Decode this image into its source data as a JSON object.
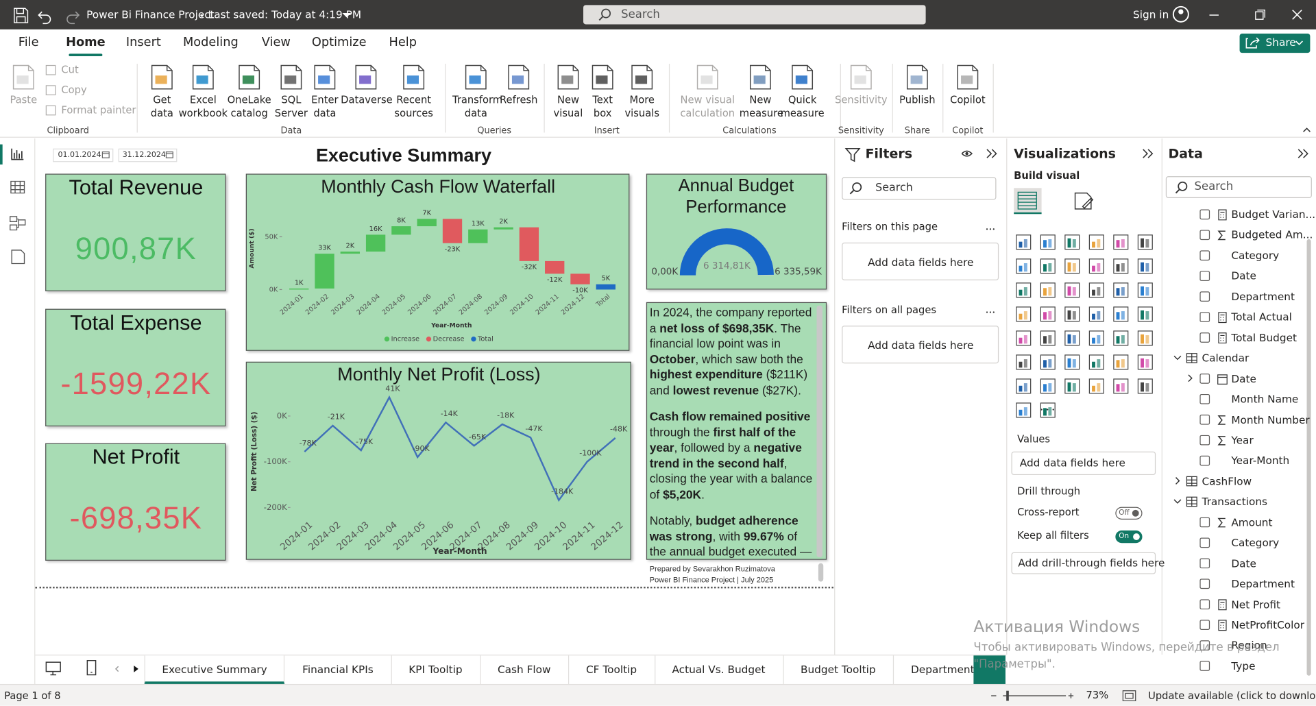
{
  "window": {
    "title": "Power Bi Finance Project",
    "saved": "Last saved: Today at 4:19 PM",
    "search": "Search",
    "sign_in": "Sign in"
  },
  "menu": {
    "tabs": [
      "File",
      "Home",
      "Insert",
      "Modeling",
      "View",
      "Optimize",
      "Help"
    ],
    "active": 1,
    "share": "Share"
  },
  "ribbon": {
    "groups": [
      {
        "label": "Clipboard",
        "buttons": [
          "Paste"
        ],
        "small": [
          "Cut",
          "Copy",
          "Format painter"
        ],
        "disabled": [
          0
        ]
      },
      {
        "label": "Data",
        "buttons": [
          "Get data",
          "Excel workbook",
          "OneLake catalog",
          "SQL Server",
          "Enter data",
          "Dataverse",
          "Recent sources"
        ],
        "disabled": []
      },
      {
        "label": "Queries",
        "buttons": [
          "Transform data",
          "Refresh"
        ],
        "disabled": []
      },
      {
        "label": "Insert",
        "buttons": [
          "New visual",
          "Text box",
          "More visuals"
        ],
        "disabled": []
      },
      {
        "label": "Calculations",
        "buttons": [
          "New visual calculation",
          "New measure",
          "Quick measure"
        ],
        "disabled": [
          0
        ]
      },
      {
        "label": "Sensitivity",
        "buttons": [
          "Sensitivity"
        ],
        "disabled": [
          0
        ]
      },
      {
        "label": "Share",
        "buttons": [
          "Publish"
        ],
        "disabled": []
      },
      {
        "label": "Copilot",
        "buttons": [
          "Copilot"
        ],
        "disabled": []
      }
    ]
  },
  "report": {
    "date_from": "01.01.2024",
    "date_to": "31.12.2024",
    "title": "Executive Summary",
    "kpis": [
      {
        "label": "Total Revenue",
        "value": "900,87K",
        "color": "#4cbb64"
      },
      {
        "label": "Total Expense",
        "value": "-1599,22K",
        "color": "#e0585e"
      },
      {
        "label": "Net Profit",
        "value": "-698,35K",
        "color": "#e0585e"
      }
    ],
    "waterfall": {
      "title": "Monthly Cash Flow Waterfall",
      "y_label": "Amount ($)",
      "x_label": "Year-Month",
      "categories": [
        "2024-01",
        "2024-02",
        "2024-03",
        "2024-04",
        "2024-05",
        "2024-06",
        "2024-07",
        "2024-08",
        "2024-09",
        "2024-10",
        "2024-11",
        "2024-12"
      ],
      "values": [
        1,
        33,
        2,
        16,
        8,
        7,
        -23,
        13,
        2,
        -32,
        -12,
        -10
      ],
      "value_labels": [
        "1K",
        "33K",
        "2K",
        "16K",
        "8K",
        "7K",
        "-23K",
        "13K",
        "2K",
        "-32K",
        "-12K",
        "-10K"
      ],
      "total_category": "Total",
      "total": 5,
      "total_label": "5K",
      "ylim": [
        0,
        70
      ],
      "yticks": [
        {
          "value": 0,
          "label": "0K"
        },
        {
          "value": 50,
          "label": "50K"
        }
      ],
      "legend": [
        {
          "name": "Increase",
          "color": "#4fc15a"
        },
        {
          "name": "Decrease",
          "color": "#e05a5e"
        },
        {
          "name": "Total",
          "color": "#1f6bc4"
        }
      ]
    },
    "line": {
      "title": "Monthly Net Profit (Loss)",
      "y_label": "Net Profit (Loss) ($)",
      "x_label": "Year-Month",
      "categories": [
        "2024-01",
        "2024-02",
        "2024-03",
        "2024-04",
        "2024-05",
        "2024-06",
        "2024-07",
        "2024-08",
        "2024-09",
        "2024-10",
        "2024-11",
        "2024-12"
      ],
      "values": [
        -78,
        -21,
        -75,
        41,
        -90,
        -14,
        -65,
        -18,
        -47,
        -184,
        -100,
        -48
      ],
      "value_labels": [
        "-78K",
        "-21K",
        "-75K",
        "41K",
        "-90K",
        "-14K",
        "-65K",
        "-18K",
        "-47K",
        "-184K",
        "-100K",
        "-48K"
      ],
      "color": "#4170b8",
      "ylim": [
        -230,
        60
      ],
      "yticks": [
        {
          "value": 0,
          "label": "0K"
        },
        {
          "value": -100,
          "label": "-100K"
        },
        {
          "value": -200,
          "label": "-200K"
        }
      ]
    },
    "gauge": {
      "title": "Annual Budget Performance",
      "min": 0,
      "min_label": "0,00K",
      "max": 6335.59,
      "max_label": "6 335,59K",
      "value": 6314.81,
      "value_label": "6 314,81K",
      "color": "#1766c8"
    },
    "summary": {
      "paragraphs": [
        [
          {
            "text": "In 2024, the company reported a ",
            "bold": false
          },
          {
            "text": "net loss of $698,35K",
            "bold": true
          },
          {
            "text": ". The financial low point was in ",
            "bold": false
          },
          {
            "text": "October",
            "bold": true
          },
          {
            "text": ", which saw both the ",
            "bold": false
          },
          {
            "text": "highest expenditure",
            "bold": true
          },
          {
            "text": " ($211K) and ",
            "bold": false
          },
          {
            "text": "lowest revenue",
            "bold": true
          },
          {
            "text": " ($27K).",
            "bold": false
          }
        ],
        [
          {
            "text": "Cash flow remained positive",
            "bold": true
          },
          {
            "text": " through the ",
            "bold": false
          },
          {
            "text": "first half of the year",
            "bold": true
          },
          {
            "text": ", followed by a ",
            "bold": false
          },
          {
            "text": "negative trend in the second half",
            "bold": true
          },
          {
            "text": ", closing the year with a balance of ",
            "bold": false
          },
          {
            "text": "$5,20K",
            "bold": true
          },
          {
            "text": ".",
            "bold": false
          }
        ],
        [
          {
            "text": "Notably, ",
            "bold": false
          },
          {
            "text": "budget adherence was strong",
            "bold": true
          },
          {
            "text": ", with ",
            "bold": false
          },
          {
            "text": "99.67%",
            "bold": true
          },
          {
            "text": " of the annual budget executed —",
            "bold": false
          }
        ]
      ],
      "footer": [
        "Prepared by Sevarakhon Ruzimatova",
        "Power BI Finance Project | July 2025"
      ]
    }
  },
  "filters": {
    "title": "Filters",
    "search": "Search",
    "sections": [
      {
        "label": "Filters on this page",
        "placeholder": "Add data fields here"
      },
      {
        "label": "Filters on all pages",
        "placeholder": "Add data fields here"
      }
    ]
  },
  "visualizations": {
    "title": "Visualizations",
    "build": "Build visual",
    "values_label": "Values",
    "values_placeholder": "Add data fields here",
    "drill_through": "Drill through",
    "cross_report": "Cross-report",
    "cross_report_state": "Off",
    "keep_filters": "Keep all filters",
    "keep_filters_state": "On",
    "drill_placeholder": "Add drill-through fields here"
  },
  "data_pane": {
    "title": "Data",
    "search": "Search",
    "fields": [
      {
        "label": "Budget Varian...",
        "kind": "measure"
      },
      {
        "label": "Budgeted Am...",
        "kind": "sum"
      },
      {
        "label": "Category",
        "kind": "field"
      },
      {
        "label": "Date",
        "kind": "field"
      },
      {
        "label": "Department",
        "kind": "field"
      },
      {
        "label": "Total Actual",
        "kind": "measure"
      },
      {
        "label": "Total Budget",
        "kind": "measure"
      },
      {
        "label": "Calendar",
        "kind": "table",
        "expanded": true
      },
      {
        "label": "Date",
        "kind": "hierarchy"
      },
      {
        "label": "Month Name",
        "kind": "field"
      },
      {
        "label": "Month Number",
        "kind": "sum"
      },
      {
        "label": "Year",
        "kind": "sum"
      },
      {
        "label": "Year-Month",
        "kind": "field"
      },
      {
        "label": "CashFlow",
        "kind": "table",
        "expanded": false
      },
      {
        "label": "Transactions",
        "kind": "table",
        "expanded": true
      },
      {
        "label": "Amount",
        "kind": "sum"
      },
      {
        "label": "Category",
        "kind": "field"
      },
      {
        "label": "Date",
        "kind": "field"
      },
      {
        "label": "Department",
        "kind": "field"
      },
      {
        "label": "Net Profit",
        "kind": "measure"
      },
      {
        "label": "NetProfitColor",
        "kind": "measure"
      },
      {
        "label": "Region",
        "kind": "field"
      },
      {
        "label": "Type",
        "kind": "field"
      }
    ]
  },
  "pages": {
    "tabs": [
      "Executive Summary",
      "Financial KPIs",
      "KPI Tooltip",
      "Cash Flow",
      "CF Tooltip",
      "Actual Vs. Budget",
      "Budget Tooltip",
      "Department and Region Brea"
    ],
    "active": 0
  },
  "status": {
    "page": "Page 1 of 8",
    "zoom": "73%",
    "update": "Update available (click to download)"
  },
  "watermark": {
    "title": "Активация Windows",
    "lines": [
      "Чтобы активировать Windows, перейдите в раздел",
      "\"Параметры\"."
    ]
  }
}
